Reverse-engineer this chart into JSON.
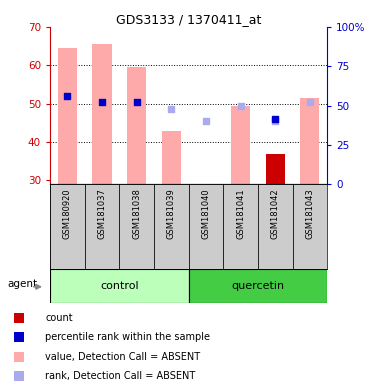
{
  "title": "GDS3133 / 1370411_at",
  "samples": [
    "GSM180920",
    "GSM181037",
    "GSM181038",
    "GSM181039",
    "GSM181040",
    "GSM181041",
    "GSM181042",
    "GSM181043"
  ],
  "value_bars": [
    64.5,
    65.5,
    59.5,
    43.0,
    null,
    49.5,
    null,
    51.5
  ],
  "count_bars": [
    null,
    null,
    null,
    null,
    null,
    null,
    37.0,
    null
  ],
  "rank_dots": [
    null,
    null,
    null,
    48.5,
    45.5,
    49.5,
    45.5,
    50.5
  ],
  "percentile_dots": [
    52.0,
    50.5,
    50.5,
    null,
    null,
    null,
    46.0,
    null
  ],
  "bar_bottom": 29,
  "ylim_left": [
    29,
    70
  ],
  "ylim_right": [
    0,
    100
  ],
  "yticks_left": [
    30,
    40,
    50,
    60,
    70
  ],
  "yticks_right": [
    0,
    25,
    50,
    75,
    100
  ],
  "ytick_labels_left": [
    "30",
    "40",
    "50",
    "60",
    "70"
  ],
  "ytick_labels_right": [
    "0",
    "25",
    "50",
    "75",
    "100%"
  ],
  "left_color": "#cc0000",
  "right_color": "#0000cc",
  "bar_color_absent": "#ffaaaa",
  "rank_color_absent": "#aaaaee",
  "count_color": "#cc0000",
  "percentile_color": "#0000cc",
  "grid_lines": [
    40,
    50,
    60
  ],
  "group_control_color": "#bbffbb",
  "group_quercetin_color": "#44cc44",
  "legend_items": [
    {
      "label": "count",
      "color": "#cc0000"
    },
    {
      "label": "percentile rank within the sample",
      "color": "#0000cc"
    },
    {
      "label": "value, Detection Call = ABSENT",
      "color": "#ffaaaa"
    },
    {
      "label": "rank, Detection Call = ABSENT",
      "color": "#aaaaee"
    }
  ]
}
